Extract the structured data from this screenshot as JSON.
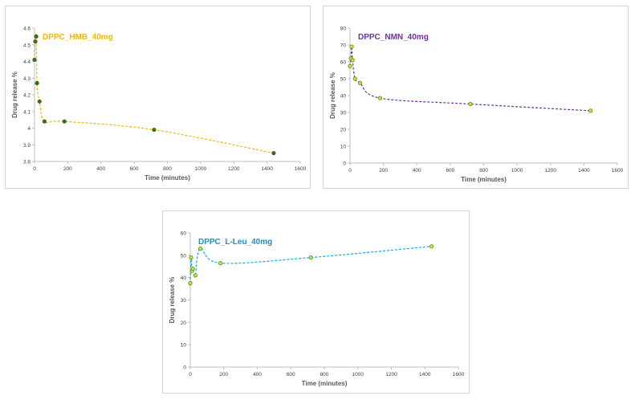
{
  "chart_data": [
    {
      "type": "line",
      "title": "DPPC_HMB_40mg",
      "xlabel": "Time (minutes)",
      "ylabel": "Drug release %",
      "xlim": [
        0,
        1600
      ],
      "ylim": [
        3.8,
        4.6
      ],
      "xticks": [
        "0",
        "200",
        "400",
        "600",
        "800",
        "1000",
        "1200",
        "1400",
        "1600"
      ],
      "yticks": [
        "3.8",
        "3.9",
        "4",
        "4.1",
        "4.2",
        "4.3",
        "4.4",
        "4.5",
        "4.6"
      ],
      "x": [
        0,
        5,
        10,
        15,
        30,
        60,
        180,
        720,
        1440
      ],
      "y": [
        4.41,
        4.52,
        4.55,
        4.27,
        4.16,
        4.04,
        4.04,
        3.99,
        3.85
      ],
      "line_color": "#F2B705",
      "marker_fill": "#3F6B1A",
      "title_color": "#F2B705"
    },
    {
      "type": "line",
      "title": "DPPC_NMN_40mg",
      "xlabel": "Time (minutes)",
      "ylabel": "Drug release %",
      "xlim": [
        0,
        1600
      ],
      "ylim": [
        0,
        80
      ],
      "xticks": [
        "0",
        "200",
        "400",
        "600",
        "800",
        "1000",
        "1200",
        "1400",
        "1600"
      ],
      "yticks": [
        "0",
        "10",
        "20",
        "30",
        "40",
        "50",
        "60",
        "70",
        "80"
      ],
      "x": [
        0,
        5,
        10,
        15,
        30,
        60,
        180,
        720,
        1440
      ],
      "y": [
        57.5,
        62,
        69,
        61,
        50,
        47.5,
        38.5,
        35,
        31
      ],
      "line_color": "#7030A0",
      "marker_fill": "#C6E04A",
      "marker_stroke": "#5B8A1C",
      "title_color": "#7030A0"
    },
    {
      "type": "line",
      "title": "DPPC_L-Leu_40mg",
      "xlabel": "Time (minutes)",
      "ylabel": "Drug release %",
      "xlim": [
        0,
        1600
      ],
      "ylim": [
        0,
        60
      ],
      "xticks": [
        "0",
        "200",
        "400",
        "600",
        "800",
        "1000",
        "1200",
        "1400",
        "1600"
      ],
      "yticks": [
        "0",
        "10",
        "20",
        "30",
        "40",
        "50",
        "60"
      ],
      "x": [
        0,
        5,
        10,
        15,
        30,
        60,
        180,
        720,
        1440
      ],
      "y": [
        37.5,
        49,
        43,
        44,
        41,
        53,
        46.5,
        49,
        54
      ],
      "line_color": "#00B0F0",
      "marker_fill": "#C6E04A",
      "marker_stroke": "#5B8A1C",
      "title_color": "#1F8FBF"
    }
  ]
}
